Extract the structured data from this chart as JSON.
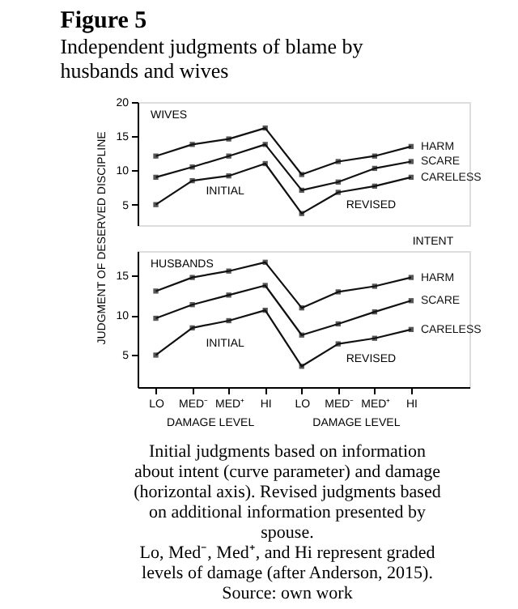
{
  "chart_data": [
    {
      "type": "line",
      "title": "Figure 5",
      "subtitle": "Independent judgments of blame by husbands and wives",
      "series": [
        {
          "name": "HARM",
          "color": "#111111",
          "values": [
            12.1,
            13.8,
            14.6,
            16.2,
            9.4,
            11.3,
            12.1,
            13.5
          ]
        },
        {
          "name": "SCARE",
          "color": "#111111",
          "values": [
            9.0,
            10.5,
            12.1,
            13.8,
            7.1,
            8.3,
            10.3,
            11.3
          ]
        },
        {
          "name": "CARELESS",
          "color": "#111111",
          "values": [
            5.0,
            8.5,
            9.2,
            11.0,
            3.7,
            6.8,
            7.7,
            9.0
          ]
        }
      ],
      "ylim": [
        2,
        20
      ],
      "yticks": [
        5,
        10,
        15,
        20
      ],
      "tick_labels": "y",
      "grid": false,
      "legend": false,
      "marker": "square",
      "line_style": "solid",
      "annotations": [
        "WIVES",
        "INITIAL",
        "REVISED",
        "INTENT"
      ]
    },
    {
      "type": "line",
      "xlabel": "DAMAGE LEVEL",
      "ylabel": "JUDGMENT OF DESERVED DISCIPLINE",
      "categories": [
        "LO",
        "MED⁻",
        "MED⁺",
        "HI",
        "LO",
        "MED⁻",
        "MED⁺",
        "HI"
      ],
      "series": [
        {
          "name": "HARM",
          "color": "#111111",
          "values": [
            13.0,
            14.7,
            15.5,
            16.6,
            10.9,
            12.9,
            13.6,
            14.7
          ]
        },
        {
          "name": "SCARE",
          "color": "#111111",
          "values": [
            9.6,
            11.3,
            12.5,
            13.7,
            7.5,
            8.9,
            10.4,
            11.8
          ]
        },
        {
          "name": "CARELESS",
          "color": "#111111",
          "values": [
            5.0,
            8.4,
            9.3,
            10.6,
            3.6,
            6.4,
            7.1,
            8.2
          ]
        }
      ],
      "ylim": [
        1,
        18
      ],
      "yticks": [
        5,
        10,
        15
      ],
      "grid": false,
      "legend": false,
      "marker": "square",
      "line_style": "solid",
      "annotations": [
        "HUSBANDS",
        "INITIAL",
        "REVISED",
        "Initial judgments based on information about intent (curve parameter) and damage (horizontal axis). Revised judgments based on additional information presented by spouse.",
        "Lo, Med⁻, Med⁺, and Hi represent graded levels of damage (after Anderson, 2015).",
        "Source: own work"
      ]
    }
  ]
}
